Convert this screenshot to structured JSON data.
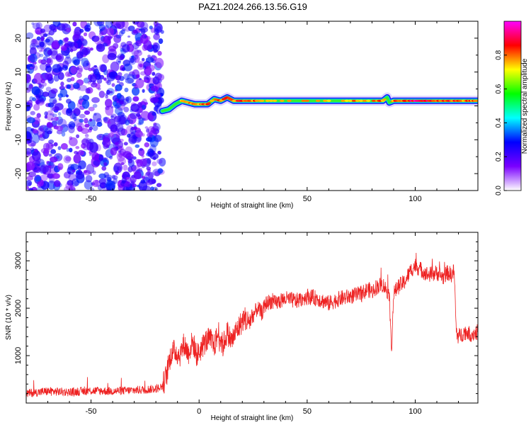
{
  "page": {
    "title": "PAZ1.2024.266.13.56.G19"
  },
  "chart_data": [
    {
      "type": "heatmap",
      "title": "PAZ1.2024.266.13.56.G19",
      "xlabel": "Height of straight line (km)",
      "ylabel": "Frequency (Hz)",
      "xlim": [
        -80,
        129
      ],
      "ylim": [
        -25,
        25
      ],
      "xticks": [
        -50,
        0,
        50,
        100
      ],
      "xtick_labels": [
        "-50",
        "0",
        "50",
        "100"
      ],
      "yticks": [
        -20,
        -10,
        0,
        10,
        20
      ],
      "ytick_labels": [
        "-20",
        "-10",
        "0",
        "10",
        "20"
      ],
      "noise_region_x": [
        -80,
        -17
      ],
      "ridge": {
        "x": [
          -17,
          -14,
          -11,
          -8,
          -5,
          -2,
          1,
          4,
          7,
          10,
          13,
          16,
          20,
          25,
          30,
          40,
          50,
          60,
          70,
          80,
          85,
          87,
          88,
          90,
          95,
          100,
          105,
          110,
          115,
          120,
          125,
          129
        ],
        "y": [
          -1.5,
          -1,
          0.5,
          1.5,
          1,
          0.5,
          0.5,
          0.5,
          2,
          1.5,
          2.5,
          1.5,
          1.5,
          1.5,
          1.5,
          1.5,
          1.5,
          1.5,
          1.5,
          1.5,
          1.5,
          2.5,
          1,
          1.5,
          1.5,
          1.5,
          1.5,
          1.5,
          1.5,
          1.5,
          1.5,
          1.5
        ],
        "amplitude": [
          0.3,
          0.5,
          0.6,
          0.7,
          0.75,
          0.8,
          0.75,
          0.8,
          0.7,
          0.8,
          0.85,
          0.8,
          0.85,
          0.8,
          0.75,
          0.7,
          0.72,
          0.72,
          0.75,
          0.78,
          0.8,
          0.6,
          0.6,
          0.8,
          0.85,
          0.9,
          0.9,
          0.85,
          0.85,
          0.8,
          0.8,
          0.8
        ]
      },
      "colorbar": {
        "label": "Normalized spectral amplitude",
        "range": [
          0,
          1
        ],
        "ticks": [
          0.0,
          0.2,
          0.4,
          0.6,
          0.8
        ],
        "tick_labels": [
          "0.0",
          "0.2",
          "0.4",
          "0.6",
          "0.8"
        ],
        "colors": [
          "#ffffff",
          "#7a00ff",
          "#0000ff",
          "#00ffff",
          "#00ff00",
          "#ffff00",
          "#ff0000",
          "#ff00ff"
        ]
      }
    },
    {
      "type": "line",
      "xlabel": "Height of straight line (km)",
      "ylabel": "SNR (10 * v/v)",
      "xlim": [
        -80,
        129
      ],
      "ylim": [
        0,
        3600
      ],
      "xticks": [
        -50,
        0,
        50,
        100
      ],
      "xtick_labels": [
        "-50",
        "0",
        "50",
        "100"
      ],
      "yticks": [
        1000,
        2000,
        3000
      ],
      "ytick_labels": [
        "1000",
        "2000",
        "3000"
      ],
      "color": "#ee2222",
      "series": [
        {
          "x": [
            -80,
            -70,
            -60,
            -50,
            -40,
            -30,
            -20,
            -17,
            -15,
            -13,
            -11,
            -9,
            -7,
            -5,
            -3,
            -1,
            1,
            3,
            5,
            7,
            9,
            11,
            13,
            15,
            17,
            19,
            21,
            23,
            25,
            27,
            29,
            31,
            33,
            35,
            40,
            45,
            50,
            55,
            60,
            65,
            70,
            75,
            78,
            80,
            82,
            85,
            88,
            89,
            90,
            92,
            95,
            98,
            100,
            103,
            106,
            110,
            113,
            115,
            117,
            118,
            119,
            120,
            123,
            126,
            129
          ],
          "y": [
            200,
            250,
            230,
            260,
            250,
            270,
            300,
            350,
            600,
            1050,
            1100,
            1000,
            1250,
            1050,
            1300,
            1000,
            1150,
            1300,
            1350,
            1200,
            1500,
            1200,
            1500,
            1300,
            1500,
            1650,
            1800,
            1700,
            1850,
            2000,
            1900,
            2100,
            2150,
            2100,
            2200,
            2150,
            2250,
            2200,
            2100,
            2200,
            2250,
            2300,
            2400,
            2350,
            2450,
            2500,
            2300,
            1050,
            2300,
            2450,
            2550,
            2800,
            2900,
            2800,
            2700,
            2750,
            2650,
            2750,
            2700,
            2800,
            1500,
            1400,
            1500,
            1450,
            1500
          ]
        }
      ]
    }
  ]
}
